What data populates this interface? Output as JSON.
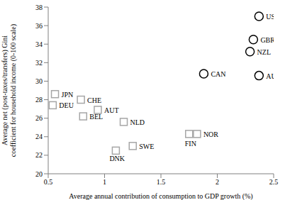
{
  "chart_data": {
    "type": "scatter",
    "x_label": "Average annual contribution of consumption to GDP growth (%)",
    "y_label": "Average net (post-taxes/transfers) Gini coefficient for household income (0-100 scale)",
    "xlim": [
      0.5,
      2.5
    ],
    "xticks": [
      0.5,
      1,
      1.5,
      2,
      2.5
    ],
    "ylim": [
      20,
      38
    ],
    "yticks": [
      20,
      22,
      24,
      26,
      28,
      30,
      32,
      34,
      36,
      38
    ],
    "grid": false,
    "series": [
      {
        "marker": "circle",
        "color": "#000000",
        "labels": [
          "USA",
          "GBR",
          "NZL",
          "AUS",
          "CAN"
        ],
        "x": [
          2.37,
          2.32,
          2.29,
          2.37,
          1.88
        ],
        "y": [
          37.0,
          34.5,
          33.2,
          30.6,
          30.8
        ]
      },
      {
        "marker": "square",
        "color": "#a6a6a6",
        "labels": [
          "JPN",
          "DEU",
          "CHE",
          "AUT",
          "BEL",
          "NLD",
          "FIN",
          "NOR",
          "SWE",
          "DNK"
        ],
        "x": [
          0.56,
          0.54,
          0.79,
          0.94,
          0.81,
          1.17,
          1.75,
          1.82,
          1.25,
          1.1
        ],
        "y": [
          28.6,
          27.4,
          28.0,
          26.9,
          26.2,
          25.6,
          24.3,
          24.3,
          23.0,
          22.5
        ]
      }
    ]
  }
}
